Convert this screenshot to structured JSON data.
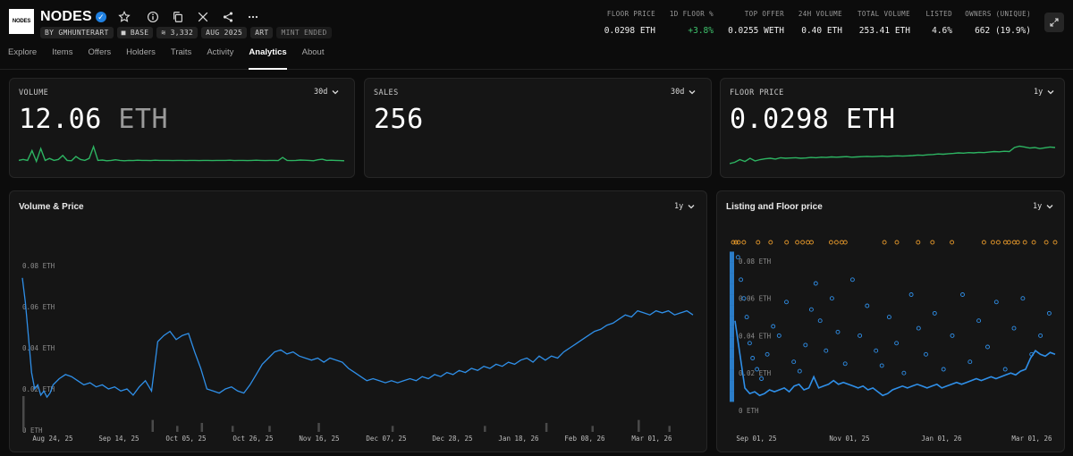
{
  "collection": {
    "logo_text": "NODES",
    "name": "NODES",
    "tags": [
      "BY GMHUNTERART",
      "BASE",
      "3,332",
      "AUG 2025",
      "ART"
    ],
    "status_tag": "MINT ENDED",
    "icons": [
      "verified-badge-icon",
      "star-icon",
      "info-icon",
      "copy-icon",
      "x-icon",
      "share-icon",
      "more-icon"
    ]
  },
  "tabs": [
    {
      "label": "Explore"
    },
    {
      "label": "Items"
    },
    {
      "label": "Offers"
    },
    {
      "label": "Holders"
    },
    {
      "label": "Traits"
    },
    {
      "label": "Activity"
    },
    {
      "label": "Analytics",
      "active": true
    },
    {
      "label": "About"
    }
  ],
  "stats": [
    {
      "label": "FLOOR PRICE",
      "value": "0.0298 ETH"
    },
    {
      "label": "1D FLOOR %",
      "value": "+3.8%",
      "color": "#3ec46d"
    },
    {
      "label": "TOP OFFER",
      "value": "0.0255 WETH"
    },
    {
      "label": "24H VOLUME",
      "value": "0.40 ETH"
    },
    {
      "label": "TOTAL VOLUME",
      "value": "253.41 ETH"
    },
    {
      "label": "LISTED",
      "value": "4.6%"
    },
    {
      "label": "OWNERS (UNIQUE)",
      "value": "662 (19.9%)"
    }
  ],
  "cards": {
    "volume": {
      "label": "VOLUME",
      "period": "30d",
      "value": "12.06",
      "unit": "ETH"
    },
    "sales": {
      "label": "SALES",
      "period": "30d",
      "value": "256"
    },
    "floor": {
      "label": "FLOOR PRICE",
      "period": "1y",
      "value": "0.0298",
      "unit": "ETH"
    }
  },
  "colors": {
    "accent_blue": "#2f8fe8",
    "spark_green": "#2db462",
    "listing_orange": "#e0952a"
  },
  "chart_data": [
    {
      "type": "line",
      "title": "Volume & Price",
      "period": "1y",
      "x_ticks": [
        "Aug 24, 25",
        "Sep 14, 25",
        "Oct 05, 25",
        "Oct 26, 25",
        "Nov 16, 25",
        "Dec 07, 25",
        "Dec 28, 25",
        "Jan 18, 26",
        "Feb 08, 26",
        "Mar 01, 26"
      ],
      "y_ticks": [
        "0 ETH",
        "0.02 ETH",
        "0.04 ETH",
        "0.06 ETH",
        "0.08 ETH"
      ],
      "ylim": [
        0,
        0.09
      ],
      "series": [
        {
          "x": [
            0,
            1,
            2,
            3,
            4,
            5,
            6,
            7,
            8,
            9,
            10,
            12,
            14,
            16,
            18,
            20,
            22,
            24,
            26,
            28,
            30,
            32,
            34,
            36,
            38,
            40,
            42,
            44,
            46,
            48,
            50,
            52,
            54,
            56,
            58,
            60,
            62,
            64,
            66,
            68,
            70,
            72,
            74,
            76,
            78,
            80,
            82,
            84,
            86,
            88,
            90,
            92,
            94,
            96,
            98,
            100,
            102,
            104,
            106,
            108,
            110,
            112,
            114,
            116,
            118,
            120,
            122,
            124,
            126,
            128,
            130,
            132,
            134,
            136,
            138,
            140,
            142,
            144,
            146,
            148,
            150,
            152,
            154,
            156,
            158,
            160,
            162,
            164,
            166,
            168,
            170,
            172,
            174,
            176,
            178,
            180,
            182,
            184,
            186,
            188,
            190,
            192,
            194,
            196,
            198,
            200,
            202,
            204,
            206,
            208,
            210,
            212,
            214,
            216,
            218
          ],
          "values": [
            0.074,
            0.062,
            0.045,
            0.028,
            0.02,
            0.022,
            0.017,
            0.019,
            0.016,
            0.018,
            0.022,
            0.025,
            0.027,
            0.026,
            0.024,
            0.022,
            0.023,
            0.021,
            0.022,
            0.02,
            0.021,
            0.019,
            0.02,
            0.017,
            0.021,
            0.024,
            0.019,
            0.043,
            0.046,
            0.048,
            0.044,
            0.046,
            0.047,
            0.038,
            0.03,
            0.02,
            0.019,
            0.018,
            0.02,
            0.021,
            0.019,
            0.018,
            0.022,
            0.027,
            0.032,
            0.035,
            0.038,
            0.039,
            0.037,
            0.038,
            0.036,
            0.035,
            0.034,
            0.035,
            0.033,
            0.035,
            0.034,
            0.033,
            0.03,
            0.028,
            0.026,
            0.024,
            0.025,
            0.024,
            0.023,
            0.024,
            0.023,
            0.024,
            0.025,
            0.024,
            0.026,
            0.025,
            0.027,
            0.026,
            0.028,
            0.027,
            0.029,
            0.028,
            0.03,
            0.029,
            0.031,
            0.03,
            0.032,
            0.031,
            0.033,
            0.032,
            0.034,
            0.035,
            0.033,
            0.036,
            0.034,
            0.036,
            0.035,
            0.038,
            0.04,
            0.042,
            0.044,
            0.046,
            0.048,
            0.049,
            0.051,
            0.052,
            0.054,
            0.056,
            0.055,
            0.058,
            0.057,
            0.056,
            0.058,
            0.057,
            0.058,
            0.056,
            0.057,
            0.058,
            0.056
          ]
        }
      ],
      "volume_bars": [
        0.012,
        0.004,
        0.002,
        0.003,
        0.002,
        0.002,
        0.003,
        0.002,
        0.002,
        0.003,
        0.002,
        0.004,
        0.002
      ]
    },
    {
      "type": "scatter",
      "title": "Listing and Floor price",
      "period": "1y",
      "x_ticks": [
        "Sep 01, 25",
        "Nov 01, 25",
        "Jan 01, 26",
        "Mar 01, 26"
      ],
      "y_ticks": [
        "0 ETH",
        "0.02 ETH",
        "0.04 ETH",
        "0.06 ETH",
        "0.08 ETH"
      ],
      "ylim": [
        0,
        0.09
      ],
      "floor_line": [
        0.048,
        0.03,
        0.012,
        0.009,
        0.01,
        0.008,
        0.009,
        0.011,
        0.01,
        0.011,
        0.012,
        0.01,
        0.013,
        0.014,
        0.011,
        0.012,
        0.018,
        0.012,
        0.013,
        0.014,
        0.016,
        0.014,
        0.015,
        0.014,
        0.013,
        0.012,
        0.013,
        0.011,
        0.012,
        0.01,
        0.008,
        0.009,
        0.011,
        0.012,
        0.013,
        0.012,
        0.013,
        0.014,
        0.013,
        0.012,
        0.013,
        0.014,
        0.012,
        0.013,
        0.014,
        0.015,
        0.014,
        0.015,
        0.016,
        0.017,
        0.016,
        0.017,
        0.018,
        0.017,
        0.018,
        0.019,
        0.02,
        0.019,
        0.021,
        0.022,
        0.028,
        0.032,
        0.03,
        0.029,
        0.031,
        0.03
      ],
      "listing_points": [
        [
          2,
          0.082
        ],
        [
          4,
          0.07
        ],
        [
          6,
          0.06
        ],
        [
          8,
          0.05
        ],
        [
          10,
          0.036
        ],
        [
          12,
          0.028
        ],
        [
          15,
          0.022
        ],
        [
          18,
          0.017
        ],
        [
          22,
          0.03
        ],
        [
          26,
          0.045
        ],
        [
          30,
          0.04
        ],
        [
          35,
          0.058
        ],
        [
          40,
          0.026
        ],
        [
          44,
          0.021
        ],
        [
          48,
          0.035
        ],
        [
          52,
          0.054
        ],
        [
          55,
          0.068
        ],
        [
          58,
          0.048
        ],
        [
          62,
          0.032
        ],
        [
          66,
          0.06
        ],
        [
          70,
          0.042
        ],
        [
          75,
          0.025
        ],
        [
          80,
          0.07
        ],
        [
          85,
          0.04
        ],
        [
          90,
          0.056
        ],
        [
          96,
          0.032
        ],
        [
          100,
          0.024
        ],
        [
          105,
          0.05
        ],
        [
          110,
          0.036
        ],
        [
          115,
          0.02
        ],
        [
          120,
          0.062
        ],
        [
          125,
          0.044
        ],
        [
          130,
          0.03
        ],
        [
          136,
          0.052
        ],
        [
          142,
          0.022
        ],
        [
          148,
          0.04
        ],
        [
          155,
          0.062
        ],
        [
          160,
          0.026
        ],
        [
          166,
          0.048
        ],
        [
          172,
          0.034
        ],
        [
          178,
          0.058
        ],
        [
          184,
          0.022
        ],
        [
          190,
          0.044
        ],
        [
          196,
          0.06
        ],
        [
          202,
          0.03
        ],
        [
          208,
          0.04
        ],
        [
          214,
          0.052
        ]
      ],
      "offer_points": [
        2,
        5,
        8,
        14,
        30,
        44,
        62,
        74,
        80,
        86,
        90,
        112,
        118,
        124,
        128,
        172,
        186,
        210,
        226,
        248,
        284,
        294,
        300,
        308,
        312,
        318,
        322,
        330,
        340,
        354,
        364
      ]
    }
  ]
}
